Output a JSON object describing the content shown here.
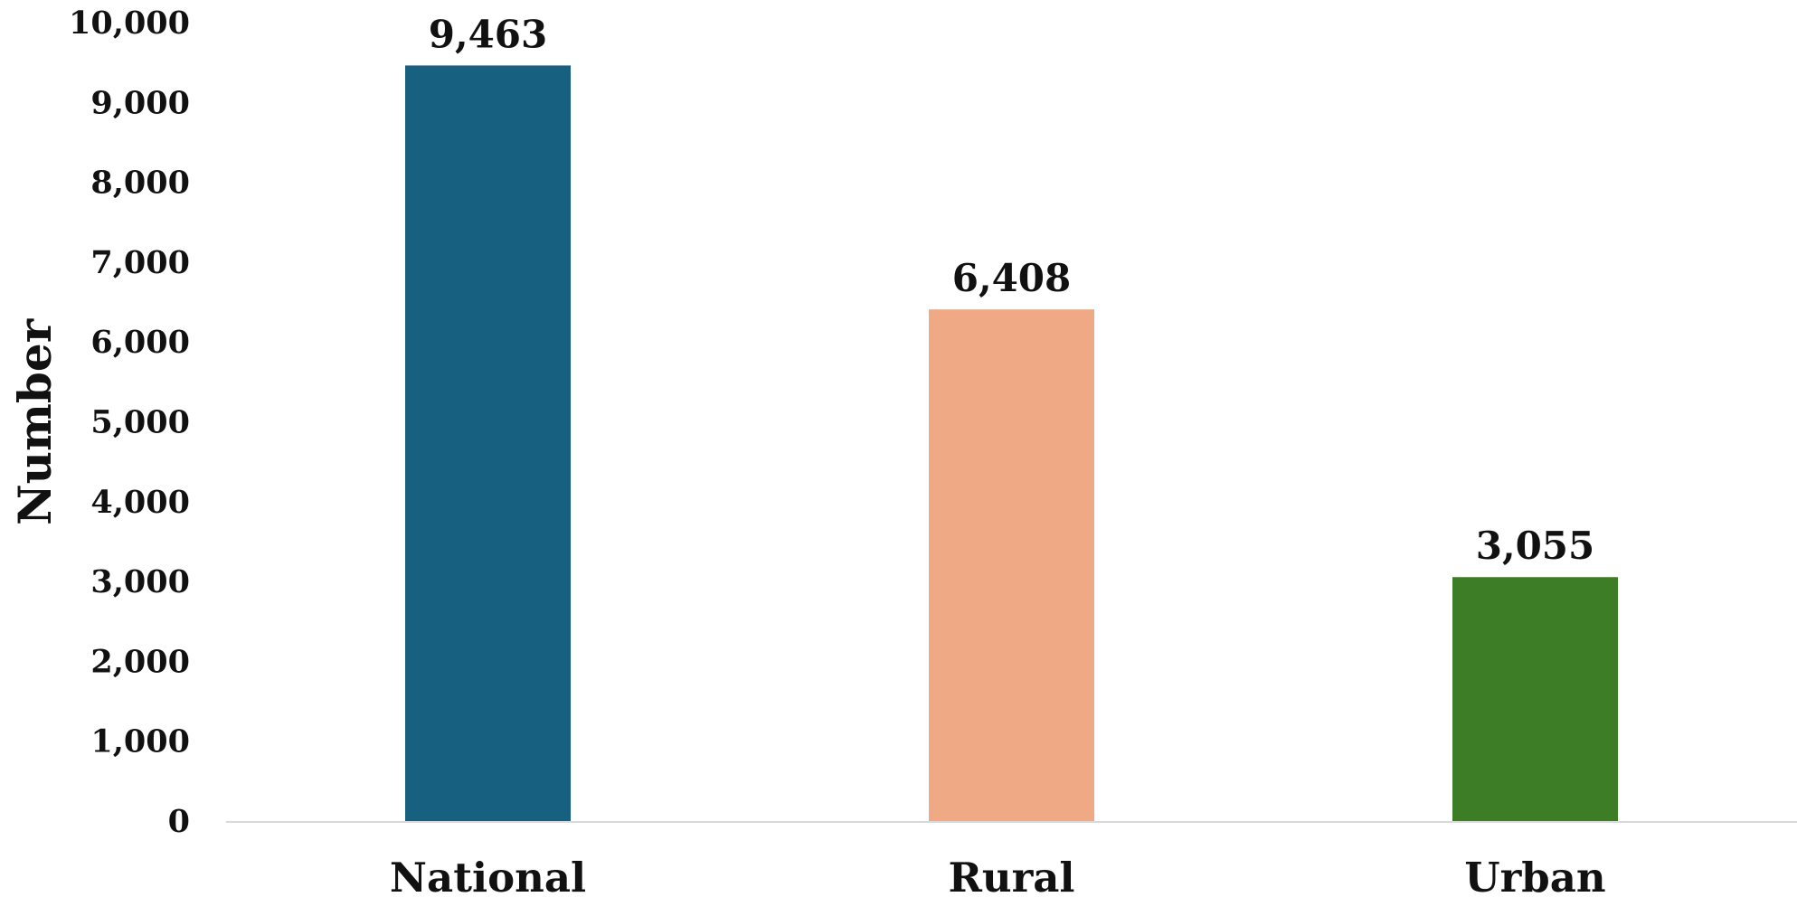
{
  "chart_data": {
    "type": "bar",
    "title": "",
    "xlabel": "",
    "ylabel": "Number",
    "categories": [
      "National",
      "Rural",
      "Urban"
    ],
    "values": [
      9463,
      6408,
      3055
    ],
    "value_labels": [
      "9,463",
      "6,408",
      "3,055"
    ],
    "colors": [
      "#17607f",
      "#f0a985",
      "#3c7d25"
    ],
    "ylim": [
      0,
      10000
    ],
    "y_ticks": [
      0,
      1000,
      2000,
      3000,
      4000,
      5000,
      6000,
      7000,
      8000,
      9000,
      10000
    ],
    "y_tick_labels": [
      "0",
      "1,000",
      "2,000",
      "3,000",
      "4,000",
      "5,000",
      "6,000",
      "7,000",
      "8,000",
      "9,000",
      "10,000"
    ],
    "grid": false,
    "legend": "none",
    "axis_color": "#d9d9d9"
  }
}
